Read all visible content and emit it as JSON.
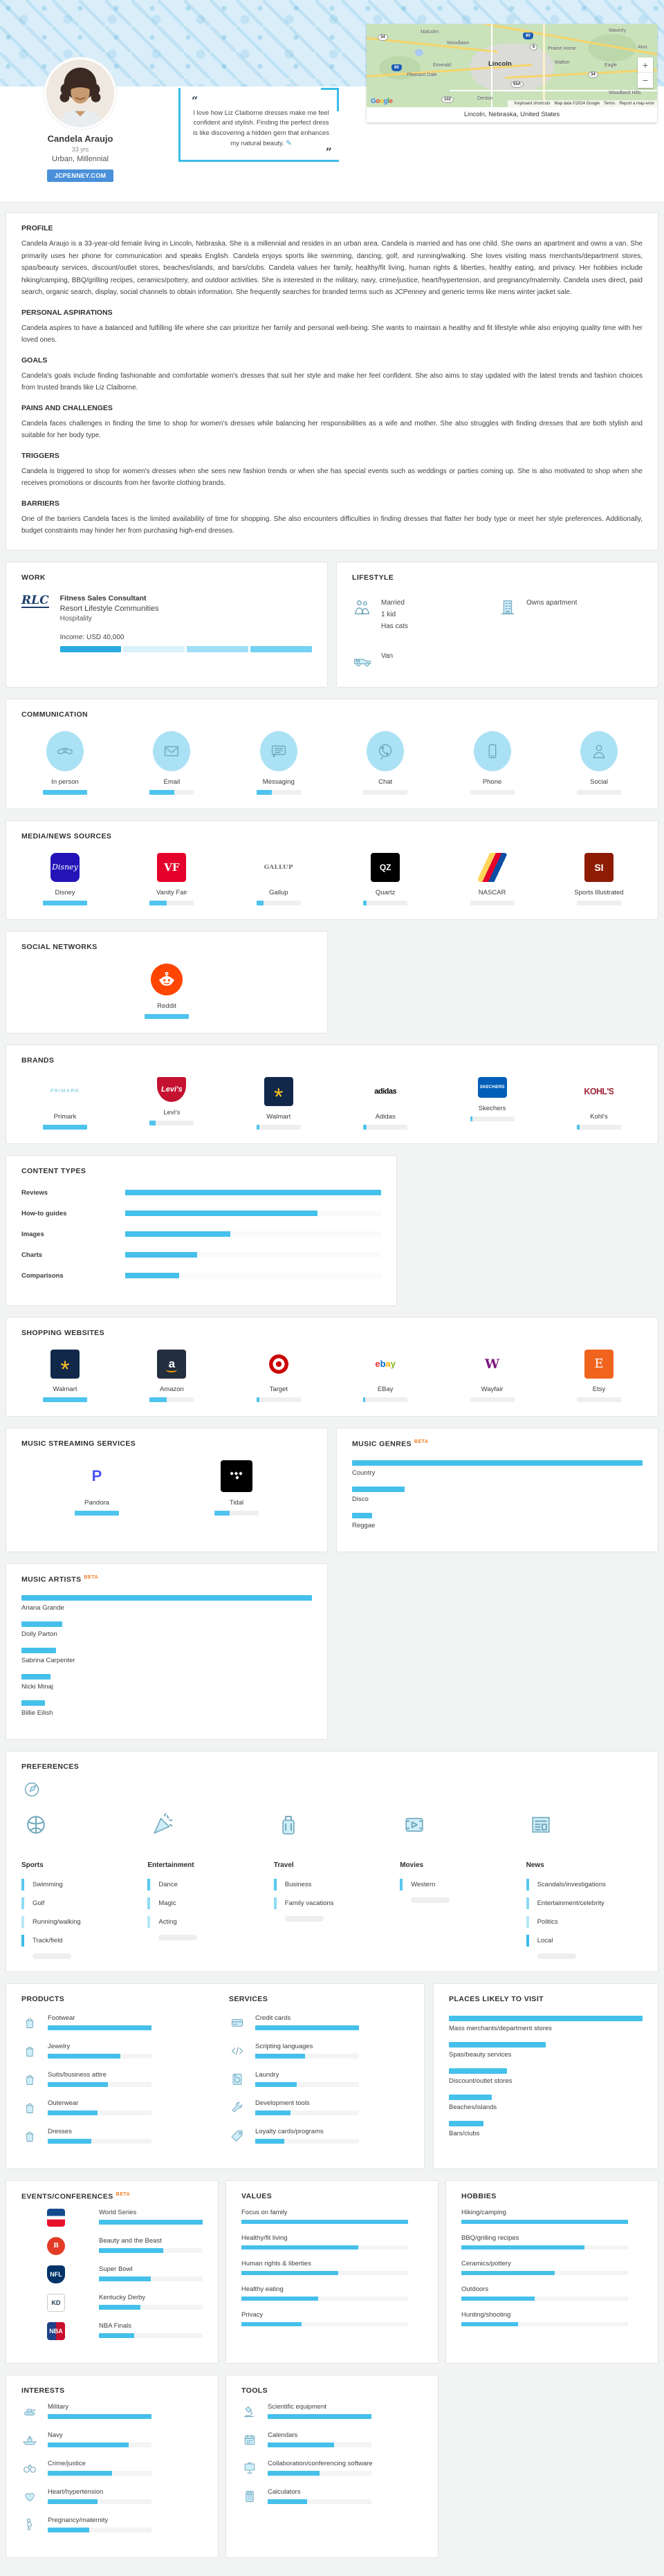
{
  "header": {
    "name": "Candela Araujo",
    "age": "33 yrs",
    "segment": "Urban, Millennial",
    "site_tag": "JCPENNEY.COM",
    "quote": "I love how Liz Claiborne dresses make me feel confident and stylish. Finding the perfect dress is like discovering a hidden gem that enhances my natural beauty.",
    "open_quote": "“",
    "close_quote": "”",
    "edit_icon": "✎",
    "map": {
      "caption": "Lincoln, Nebraska, United States",
      "city": "Lincoln",
      "towns": [
        "Malcolm",
        "Waverly",
        "Woodlawn",
        "Prairie Home",
        "Alvo",
        "Emerald",
        "Walton",
        "Eagle",
        "Pleasant Dale",
        "Denton",
        "Woodland Hills"
      ],
      "shields": [
        "34",
        "80",
        "6",
        "34",
        "55A",
        "102"
      ],
      "google": "Google",
      "keyboard_shortcuts": "Keyboard shortcuts",
      "attribution": "Map data ©2024 Google",
      "terms": "Terms",
      "report": "Report a map error",
      "zoom_in": "+",
      "zoom_out": "−"
    }
  },
  "narrative": {
    "blocks": [
      {
        "heading": "PROFILE",
        "text": "Candela Araujo is a 33-year-old female living in Lincoln, Nebraska. She is a millennial and resides in an urban area. Candela is married and has one child. She owns an apartment and owns a van. She primarily uses her phone for communication and speaks English. Candela enjoys sports like swimming, dancing, golf, and running/walking. She loves visiting mass merchants/department stores, spas/beauty services, discount/outlet stores, beaches/islands, and bars/clubs. Candela values her family, healthy/fit living, human rights & liberties, healthy eating, and privacy. Her hobbies include hiking/camping, BBQ/grilling recipes, ceramics/pottery, and outdoor activities. She is interested in the military, navy, crime/justice, heart/hypertension, and pregnancy/maternity. Candela uses direct, paid search, organic search, display, social channels to obtain information. She frequently searches for branded terms such as JCPenney and generic terms like mens winter jacket sale."
      },
      {
        "heading": "PERSONAL ASPIRATIONS",
        "text": "Candela aspires to have a balanced and fulfilling life where she can prioritize her family and personal well-being. She wants to maintain a healthy and fit lifestyle while also enjoying quality time with her loved ones."
      },
      {
        "heading": "GOALS",
        "text": "Candela's goals include finding fashionable and comfortable women's dresses that suit her style and make her feel confident. She also aims to stay updated with the latest trends and fashion choices from trusted brands like Liz Claiborne."
      },
      {
        "heading": "PAINS AND CHALLENGES",
        "text": "Candela faces challenges in finding the time to shop for women's dresses while balancing her responsibilities as a wife and mother. She also struggles with finding dresses that are both stylish and suitable for her body type."
      },
      {
        "heading": "TRIGGERS",
        "text": "Candela is triggered to shop for women's dresses when she sees new fashion trends or when she has special events such as weddings or parties coming up. She is also motivated to shop when she receives promotions or discounts from her favorite clothing brands."
      },
      {
        "heading": "BARRIERS",
        "text": "One of the barriers Candela faces is the limited availability of time for shopping. She also encounters difficulties in finding dresses that flatter her body type or meet her style preferences. Additionally, budget constraints may hinder her from purchasing high-end dresses."
      }
    ]
  },
  "work": {
    "title": "WORK",
    "logo_text": "RLC",
    "role": "Fitness Sales Consultant",
    "company": "Resort Lifestyle Communities",
    "industry": "Hospitality",
    "income_label": "Income: USD 40,000",
    "income_segment_colors": [
      "#29abe2",
      "#d9f2fc",
      "#9fdef5",
      "#74d2f2"
    ]
  },
  "lifestyle": {
    "title": "LIFESTYLE",
    "family": "Married\n1 kid\nHas cats",
    "housing": "Owns apartment",
    "vehicle": "Van"
  },
  "communication": {
    "title": "COMMUNICATION",
    "items": [
      {
        "label": "In person",
        "icon": "handshake",
        "pct": 100
      },
      {
        "label": "Email",
        "icon": "envelope",
        "pct": 55
      },
      {
        "label": "Messaging",
        "icon": "message",
        "pct": 35
      },
      {
        "label": "Chat",
        "icon": "chat",
        "pct": 0
      },
      {
        "label": "Phone",
        "icon": "smartphone",
        "pct": 0
      },
      {
        "label": "Social",
        "icon": "person",
        "pct": 0
      }
    ]
  },
  "media_sources": {
    "title": "MEDIA/NEWS SOURCES",
    "items": [
      {
        "label": "Disney",
        "logo": "disney",
        "logo_text": "Disney",
        "pct": 100
      },
      {
        "label": "Vanity Fair",
        "logo": "vf",
        "logo_text": "VF",
        "pct": 38
      },
      {
        "label": "Gallup",
        "logo": "gallup",
        "logo_text": "GALLUP",
        "pct": 16
      },
      {
        "label": "Quartz",
        "logo": "quartz",
        "logo_text": "QZ",
        "pct": 7
      },
      {
        "label": "NASCAR",
        "logo": "nascar",
        "logo_text": "",
        "pct": 0
      },
      {
        "label": "Sports Illustrated",
        "logo": "si",
        "logo_text": "SI",
        "pct": 0
      }
    ]
  },
  "social_networks": {
    "title": "SOCIAL NETWORKS",
    "items": [
      {
        "label": "Reddit",
        "logo": "reddit",
        "logo_text": "",
        "pct": 100
      }
    ]
  },
  "brands": {
    "title": "BRANDS",
    "items": [
      {
        "label": "Primark",
        "logo": "primark",
        "logo_text": "PRIMARK",
        "pct": 100
      },
      {
        "label": "Levi's",
        "logo": "levis",
        "logo_text": "Levi's",
        "pct": 14
      },
      {
        "label": "Walmart",
        "logo": "walmart",
        "logo_text": "*",
        "pct": 7
      },
      {
        "label": "Adidas",
        "logo": "adidas",
        "logo_text": "adidas",
        "pct": 7
      },
      {
        "label": "Skechers",
        "logo": "skechers",
        "logo_text": "SKECHERS",
        "pct": 5
      },
      {
        "label": "Kohl's",
        "logo": "kohls",
        "logo_text": "KOHL'S",
        "pct": 7
      }
    ]
  },
  "content_types": {
    "title": "CONTENT TYPES",
    "items": [
      {
        "label": "Reviews",
        "pct": 100
      },
      {
        "label": "How-to guides",
        "pct": 75
      },
      {
        "label": "Images",
        "pct": 41
      },
      {
        "label": "Charts",
        "pct": 28
      },
      {
        "label": "Comparisons",
        "pct": 21
      }
    ]
  },
  "shopping_websites": {
    "title": "SHOPPING WEBSITES",
    "items": [
      {
        "label": "Walmart",
        "logo": "walmart",
        "logo_text": "*",
        "pct": 100
      },
      {
        "label": "Amazon",
        "logo": "amazon",
        "logo_text": "a",
        "pct": 38
      },
      {
        "label": "Target",
        "logo": "target",
        "logo_text": "",
        "pct": 7
      },
      {
        "label": "EBay",
        "logo": "ebay",
        "logo_text": "ebay",
        "pct": 5
      },
      {
        "label": "Wayfair",
        "logo": "wayfair",
        "logo_text": "W",
        "pct": 0
      },
      {
        "label": "Etsy",
        "logo": "etsy",
        "logo_text": "E",
        "pct": 0
      }
    ]
  },
  "music_streaming": {
    "title": "MUSIC STREAMING SERVICES",
    "items": [
      {
        "label": "Pandora",
        "logo": "pandora",
        "logo_text": "P",
        "pct": 100
      },
      {
        "label": "Tidal",
        "logo": "tidal",
        "logo_text": "",
        "pct": 35
      }
    ]
  },
  "music_genres": {
    "title": "MUSIC GENRES",
    "beta": "BETA",
    "items": [
      {
        "label": "Country",
        "pct": 100
      },
      {
        "label": "Disco",
        "pct": 18
      },
      {
        "label": "Reggae",
        "pct": 7
      }
    ]
  },
  "music_artists": {
    "title": "MUSIC ARTISTS",
    "beta": "BETA",
    "items": [
      {
        "label": "Ariana Grande",
        "pct": 100
      },
      {
        "label": "Dolly Parton",
        "pct": 14
      },
      {
        "label": "Sabrina Carpenter",
        "pct": 12
      },
      {
        "label": "Nicki Minaj",
        "pct": 10
      },
      {
        "label": "Billie Eilish",
        "pct": 8
      }
    ]
  },
  "preferences": {
    "title": "PREFERENCES",
    "columns": [
      {
        "header": "Sports",
        "icon": "ball",
        "items": [
          "Swimming",
          "Golf",
          "Running/walking",
          "Track/field"
        ]
      },
      {
        "header": "Entertainment",
        "icon": "cone",
        "items": [
          "Dance",
          "Magic",
          "Acting"
        ]
      },
      {
        "header": "Travel",
        "icon": "suitcase",
        "items": [
          "Business",
          "Family vacations"
        ]
      },
      {
        "header": "Movies",
        "icon": "film",
        "items": [
          "Western"
        ]
      },
      {
        "header": "News",
        "icon": "news",
        "items": [
          "Scandals/investigations",
          "Entertainment/celebrity",
          "Politics",
          "Local"
        ]
      }
    ]
  },
  "products": {
    "title": "PRODUCTS",
    "items": [
      {
        "label": "Footwear",
        "icon": "bag",
        "pct": 100
      },
      {
        "label": "Jewelry",
        "icon": "bag",
        "pct": 70
      },
      {
        "label": "Suits/business attire",
        "icon": "bag",
        "pct": 58
      },
      {
        "label": "Outerwear",
        "icon": "bag",
        "pct": 48
      },
      {
        "label": "Dresses",
        "icon": "bag",
        "pct": 42
      }
    ]
  },
  "services": {
    "title": "SERVICES",
    "items": [
      {
        "label": "Credit cards",
        "icon": "card",
        "pct": 100
      },
      {
        "label": "Scripting languages",
        "icon": "code",
        "pct": 48
      },
      {
        "label": "Laundry",
        "icon": "laundry",
        "pct": 40
      },
      {
        "label": "Development tools",
        "icon": "wrench",
        "pct": 34
      },
      {
        "label": "Loyalty cards/programs",
        "icon": "tag",
        "pct": 28
      }
    ]
  },
  "places": {
    "title": "PLACES LIKELY TO VISIT",
    "items": [
      {
        "label": "Mass merchants/department stores",
        "pct": 100
      },
      {
        "label": "Spas/beauty services",
        "pct": 50
      },
      {
        "label": "Discount/outlet stores",
        "pct": 30
      },
      {
        "label": "Beaches/islands",
        "pct": 22
      },
      {
        "label": "Bars/clubs",
        "pct": 18
      }
    ]
  },
  "events": {
    "title": "EVENTS/CONFERENCES",
    "beta": "BETA",
    "items": [
      {
        "label": "World Series",
        "logo": "mlb",
        "logo_text": "",
        "pct": 100
      },
      {
        "label": "Beauty and the Beast",
        "logo": "beast",
        "logo_text": "B",
        "pct": 62
      },
      {
        "label": "Super Bowl",
        "logo": "nfl",
        "logo_text": "NFL",
        "pct": 50
      },
      {
        "label": "Kentucky Derby",
        "logo": "kd",
        "logo_text": "KD",
        "pct": 40
      },
      {
        "label": "NBA Finals",
        "logo": "nba",
        "logo_text": "NBA",
        "pct": 34
      }
    ]
  },
  "values": {
    "title": "VALUES",
    "items": [
      {
        "label": "Focus on family",
        "pct": 100
      },
      {
        "label": "Healthy/fit living",
        "pct": 70
      },
      {
        "label": "Human rights & liberties",
        "pct": 58
      },
      {
        "label": "Healthy eating",
        "pct": 46
      },
      {
        "label": "Privacy",
        "pct": 36
      }
    ]
  },
  "hobbies": {
    "title": "HOBBIES",
    "items": [
      {
        "label": "Hiking/camping",
        "pct": 100
      },
      {
        "label": "BBQ/grilling recipes",
        "pct": 74
      },
      {
        "label": "Ceramics/pottery",
        "pct": 56
      },
      {
        "label": "Outdoors",
        "pct": 44
      },
      {
        "label": "Hunting/shooting",
        "pct": 34
      }
    ]
  },
  "interests": {
    "title": "INTERESTS",
    "items": [
      {
        "label": "Military",
        "icon": "tank",
        "pct": 100
      },
      {
        "label": "Navy",
        "icon": "ship",
        "pct": 78
      },
      {
        "label": "Crime/justice",
        "icon": "cuffs",
        "pct": 62
      },
      {
        "label": "Heart/hypertension",
        "icon": "heart",
        "pct": 48
      },
      {
        "label": "Pregnancy/maternity",
        "icon": "pregnant",
        "pct": 40
      }
    ]
  },
  "tools": {
    "title": "TOOLS",
    "items": [
      {
        "label": "Scientific equipment",
        "icon": "microscope",
        "pct": 100
      },
      {
        "label": "Calendars",
        "icon": "calendar",
        "pct": 64
      },
      {
        "label": "Collaboration/conferencing software",
        "icon": "screen",
        "pct": 50
      },
      {
        "label": "Calculators",
        "icon": "calculator",
        "pct": 38
      }
    ]
  }
}
